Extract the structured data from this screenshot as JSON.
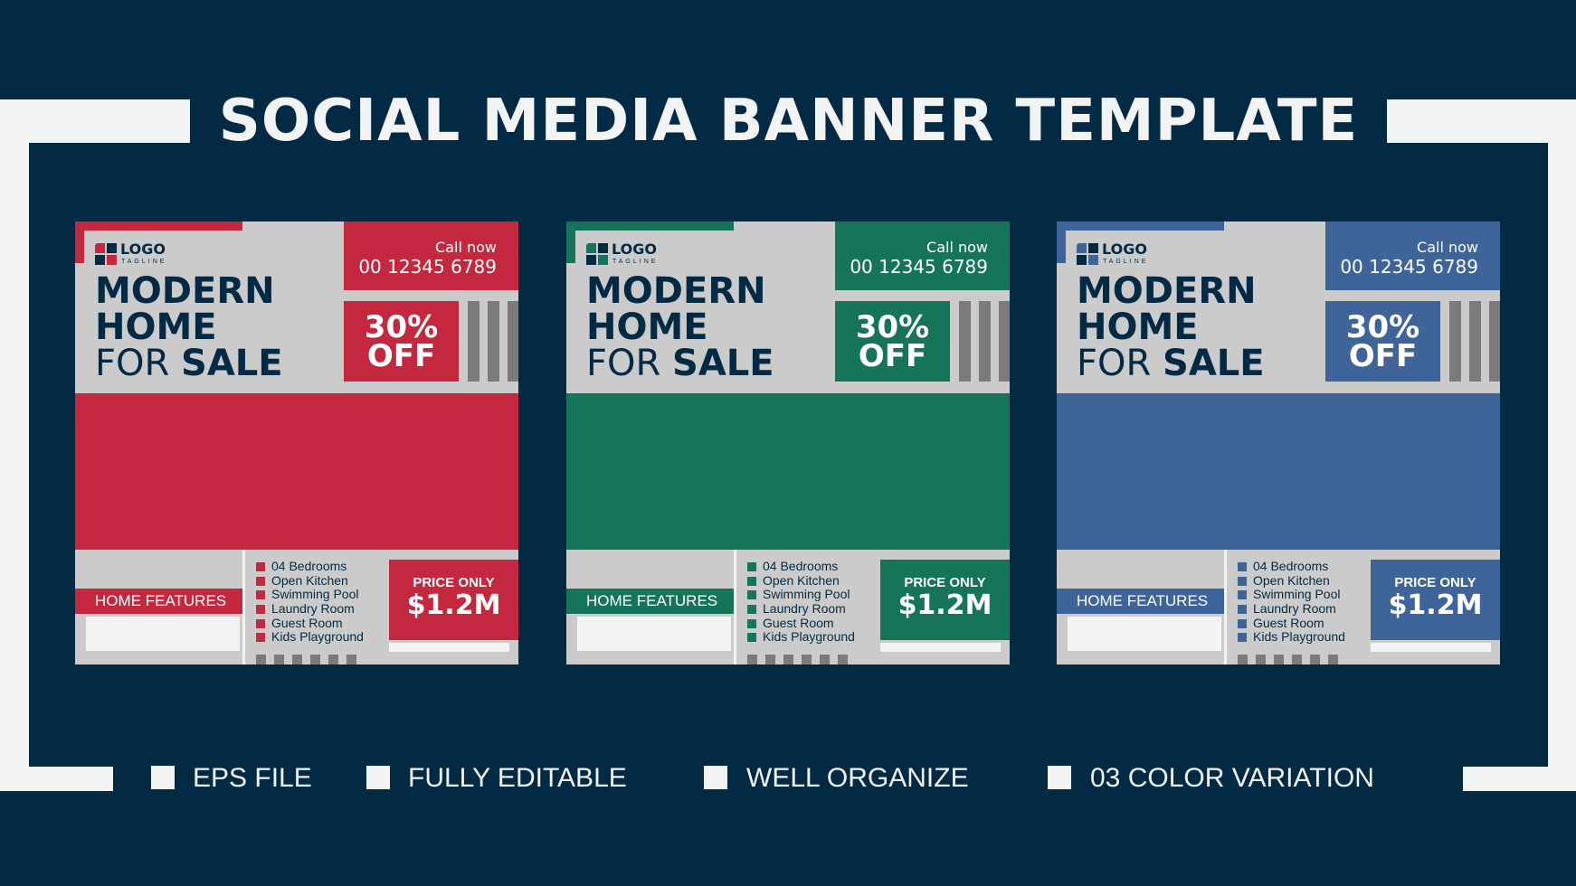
{
  "title": "SOCIAL MEDIA BANNER TEMPLATE",
  "colors": {
    "background": "#032a44",
    "frame": "#f2f3f3",
    "card_grey": "#cbcbcb"
  },
  "cards": [
    {
      "accent": "#c4283f",
      "logo": "LOGO",
      "tagline": "TAGLINE",
      "call_label": "Call now",
      "phone": "00 12345 6789",
      "headline_line1": "MODERN",
      "headline_line2": "HOME",
      "headline_line3_plain": "FOR",
      "headline_line3_bold": "SALE",
      "discount_line1": "30%",
      "discount_line2": "OFF",
      "features_label": "HOME FEATURES",
      "features": [
        "04 Bedrooms",
        "Open Kitchen",
        "Swimming Pool",
        "Laundry Room",
        "Guest Room",
        "Kids Playground"
      ],
      "price_label": "PRICE ONLY",
      "price_value": "$1.2M"
    },
    {
      "accent": "#16745a",
      "logo": "LOGO",
      "tagline": "TAGLINE",
      "call_label": "Call now",
      "phone": "00 12345 6789",
      "headline_line1": "MODERN",
      "headline_line2": "HOME",
      "headline_line3_plain": "FOR",
      "headline_line3_bold": "SALE",
      "discount_line1": "30%",
      "discount_line2": "OFF",
      "features_label": "HOME FEATURES",
      "features": [
        "04 Bedrooms",
        "Open Kitchen",
        "Swimming Pool",
        "Laundry Room",
        "Guest Room",
        "Kids Playground"
      ],
      "price_label": "PRICE ONLY",
      "price_value": "$1.2M"
    },
    {
      "accent": "#3e6499",
      "logo": "LOGO",
      "tagline": "TAGLINE",
      "call_label": "Call now",
      "phone": "00 12345 6789",
      "headline_line1": "MODERN",
      "headline_line2": "HOME",
      "headline_line3_plain": "FOR",
      "headline_line3_bold": "SALE",
      "discount_line1": "30%",
      "discount_line2": "OFF",
      "features_label": "HOME FEATURES",
      "features": [
        "04 Bedrooms",
        "Open Kitchen",
        "Swimming Pool",
        "Laundry Room",
        "Guest Room",
        "Kids Playground"
      ],
      "price_label": "PRICE ONLY",
      "price_value": "$1.2M"
    }
  ],
  "footer": [
    "EPS FILE",
    "FULLY EDITABLE",
    "WELL ORGANIZE",
    "03 COLOR VARIATION"
  ]
}
